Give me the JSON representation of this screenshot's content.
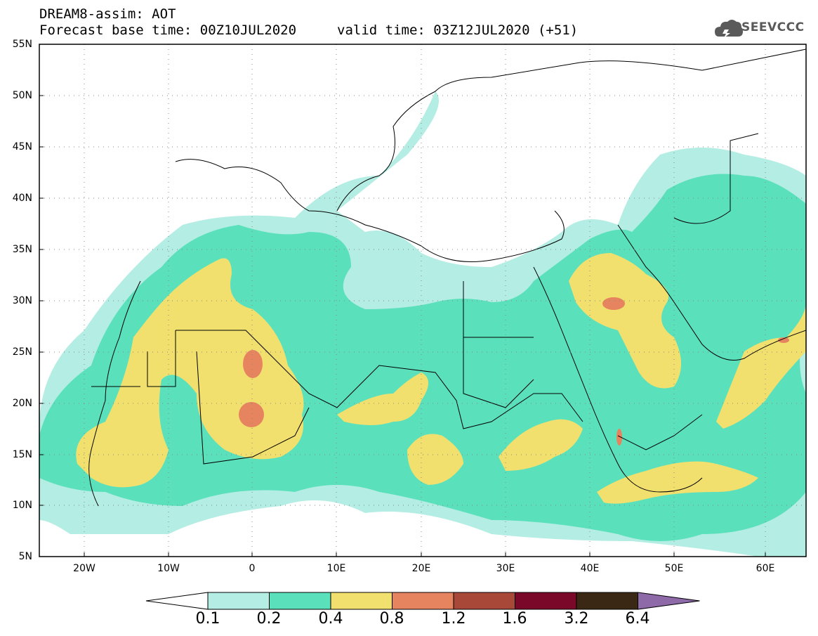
{
  "header": {
    "title_line1": "DREAM8-assim: AOT",
    "forecast_base": "Forecast base time: 00Z10JUL2020",
    "valid_time": "valid time: 03Z12JUL2020 (+51)",
    "logo_text": "SEEVCCC"
  },
  "axes": {
    "lat_labels": [
      "55N",
      "50N",
      "45N",
      "40N",
      "35N",
      "30N",
      "25N",
      "20N",
      "15N",
      "10N",
      "5N"
    ],
    "lon_labels": [
      "20W",
      "10W",
      "0",
      "10E",
      "20E",
      "30E",
      "40E",
      "50E",
      "60E"
    ]
  },
  "colorbar": {
    "labels": [
      "0.1",
      "0.2",
      "0.4",
      "0.8",
      "1.2",
      "1.6",
      "3.2",
      "6.4"
    ],
    "colors": [
      "#ffffff",
      "#b4ede3",
      "#5be0bc",
      "#f2e06e",
      "#e6845f",
      "#a84838",
      "#7a0828",
      "#3a2814",
      "#8e6aa8"
    ]
  },
  "colors": {
    "c01": "#b4ede3",
    "c02": "#5be0bc",
    "c04": "#f2e06e",
    "c08": "#e6845f",
    "border": "#000000"
  }
}
